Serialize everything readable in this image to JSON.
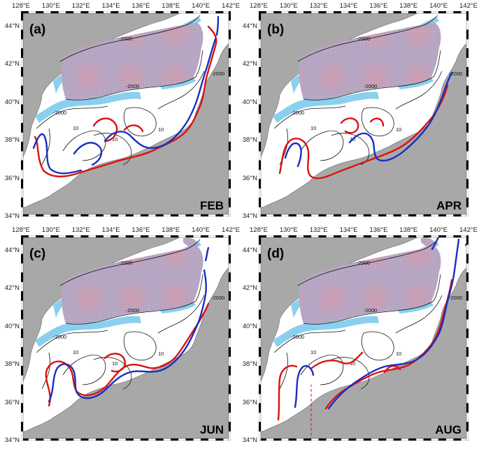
{
  "figure": {
    "lon_ticks": [
      "128°E",
      "130°E",
      "132°E",
      "134°E",
      "136°E",
      "138°E",
      "140°E",
      "142°E"
    ],
    "lat_ticks": [
      "44°N",
      "42°N",
      "40°N",
      "38°N",
      "36°N",
      "34°N"
    ],
    "colors": {
      "land": "#a8a8a8",
      "sea": "#ffffff",
      "shallow_shelf": "#8ad0ee",
      "hatched_region": "#b9a9c6",
      "hatch_red": "#e06060",
      "front_red": "#dd1111",
      "front_blue": "#1a2fbf",
      "contour": "#111111"
    },
    "contour_labels": [
      "-2000",
      "10"
    ]
  },
  "panels": [
    {
      "id": "a",
      "label": "(a)",
      "month": "FEB"
    },
    {
      "id": "b",
      "label": "(b)",
      "month": "APR"
    },
    {
      "id": "c",
      "label": "(c)",
      "month": "JUN"
    },
    {
      "id": "d",
      "label": "(d)",
      "month": "AUG"
    }
  ]
}
